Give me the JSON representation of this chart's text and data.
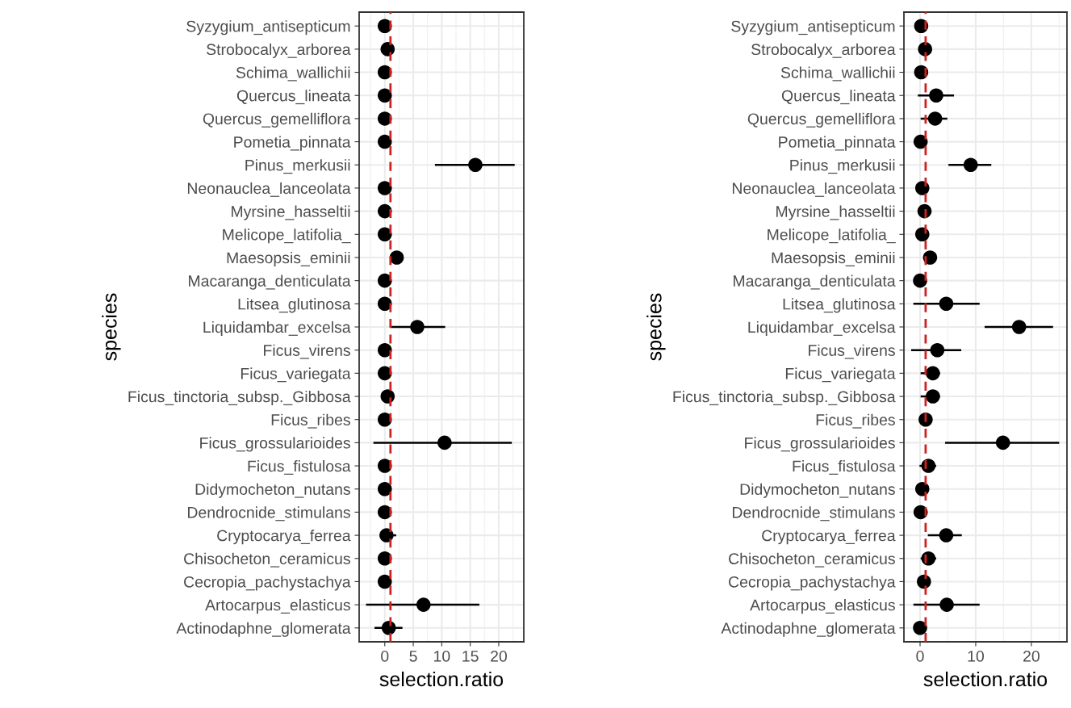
{
  "chart_data": [
    {
      "type": "scatter",
      "orientation": "horizontal",
      "xlabel": "selection.ratio",
      "ylabel": "species",
      "categories": [
        "Syzygium_antisepticum",
        "Strobocalyx_arborea",
        "Schima_wallichii",
        "Quercus_lineata",
        "Quercus_gemelliflora",
        "Pometia_pinnata",
        "Pinus_merkusii",
        "Neonauclea_lanceolata",
        "Myrsine_hasseltii",
        "Melicope_latifolia_",
        "Maesopsis_eminii",
        "Macaranga_denticulata",
        "Litsea_glutinosa",
        "Liquidambar_excelsa",
        "Ficus_virens",
        "Ficus_variegata",
        "Ficus_tinctoria_subsp._Gibbosa",
        "Ficus_ribes",
        "Ficus_grossularioides",
        "Ficus_fistulosa",
        "Didymocheton_nutans",
        "Dendrocnide_stimulans",
        "Cryptocarya_ferrea",
        "Chisocheton_ceramicus",
        "Cecropia_pachystachya",
        "Artocarpus_elasticus",
        "Actinodaphne_glomerata"
      ],
      "series": [
        {
          "color": "#000000",
          "values": [
            0,
            0.5,
            0,
            0,
            0,
            0,
            15.9,
            0,
            0,
            0,
            2.1,
            0,
            0,
            5.7,
            0,
            0,
            0.5,
            0,
            10.5,
            0,
            0,
            0,
            0.3,
            0,
            0,
            6.8,
            0.7
          ],
          "errors": [
            null,
            null,
            null,
            null,
            null,
            null,
            [
              8.8,
              22.8
            ],
            null,
            null,
            null,
            null,
            null,
            null,
            [
              0.9,
              10.6
            ],
            null,
            null,
            null,
            null,
            [
              -2.0,
              22.3
            ],
            null,
            null,
            null,
            [
              0.3,
              2.0
            ],
            null,
            null,
            [
              -3.3,
              16.6
            ],
            [
              -1.8,
              3.1
            ]
          ]
        }
      ],
      "xlim": [
        -4.5,
        24.4
      ],
      "xticks": [
        0,
        5,
        10,
        15,
        20
      ],
      "grid": true,
      "marker": "circle",
      "ref_lines": [
        {
          "axis": "x",
          "value": 1,
          "color": "#cc2222",
          "line_style": "dashed"
        }
      ]
    },
    {
      "type": "scatter",
      "orientation": "horizontal",
      "xlabel": "selection.ratio",
      "ylabel": "species",
      "categories": [
        "Syzygium_antisepticum",
        "Strobocalyx_arborea",
        "Schima_wallichii",
        "Quercus_lineata",
        "Quercus_gemelliflora",
        "Pometia_pinnata",
        "Pinus_merkusii",
        "Neonauclea_lanceolata",
        "Myrsine_hasseltii",
        "Melicope_latifolia_",
        "Maesopsis_eminii",
        "Macaranga_denticulata",
        "Litsea_glutinosa",
        "Liquidambar_excelsa",
        "Ficus_virens",
        "Ficus_variegata",
        "Ficus_tinctoria_subsp._Gibbosa",
        "Ficus_ribes",
        "Ficus_grossularioides",
        "Ficus_fistulosa",
        "Didymocheton_nutans",
        "Dendrocnide_stimulans",
        "Cryptocarya_ferrea",
        "Chisocheton_ceramicus",
        "Cecropia_pachystachya",
        "Artocarpus_elasticus",
        "Actinodaphne_glomerata"
      ],
      "series": [
        {
          "color": "#000000",
          "values": [
            0.2,
            0.9,
            0.2,
            2.9,
            2.7,
            0.1,
            9.1,
            0.4,
            0.8,
            0.4,
            1.8,
            0,
            4.7,
            17.8,
            3.1,
            2.3,
            2.3,
            1.0,
            14.9,
            1.5,
            0.4,
            0.1,
            4.7,
            1.5,
            0.7,
            4.8,
            0
          ],
          "errors": [
            null,
            null,
            null,
            [
              -0.4,
              6.1
            ],
            [
              0.1,
              4.9
            ],
            null,
            [
              5.1,
              12.8
            ],
            null,
            null,
            null,
            null,
            null,
            [
              -1.2,
              10.7
            ],
            [
              11.6,
              23.9
            ],
            [
              -1.6,
              7.4
            ],
            [
              0.1,
              3.6
            ],
            [
              0.1,
              3.6
            ],
            [
              0.2,
              1.8
            ],
            [
              4.5,
              25.0
            ],
            [
              -0.1,
              2.9
            ],
            null,
            null,
            [
              1.4,
              7.5
            ],
            [
              0.1,
              2.9
            ],
            null,
            [
              -1.2,
              10.7
            ],
            null
          ]
        }
      ],
      "xlim": [
        -2.9,
        26.4
      ],
      "xticks": [
        0,
        10,
        20
      ],
      "grid": true,
      "marker": "circle",
      "ref_lines": [
        {
          "axis": "x",
          "value": 1,
          "color": "#cc2222",
          "line_style": "dashed"
        }
      ]
    }
  ]
}
